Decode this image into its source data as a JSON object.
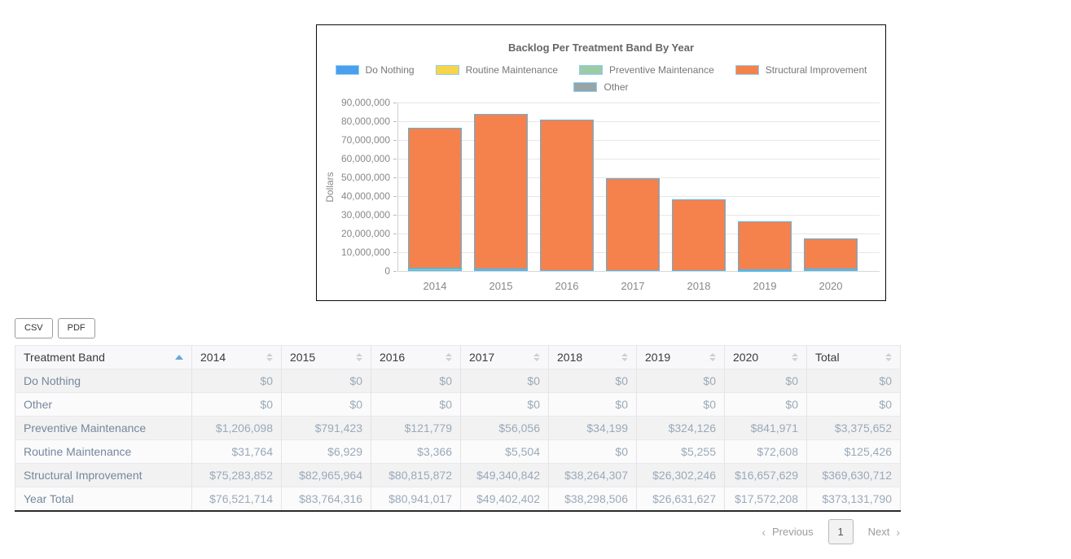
{
  "chart": {
    "title": "Backlog Per Treatment Band By Year",
    "ylabel": "Dollars",
    "bar_border_color": "#57b6e6",
    "legend_swatch_border": "#8ecdf0"
  },
  "chart_data": {
    "type": "bar",
    "stacked": true,
    "categories": [
      "2014",
      "2015",
      "2016",
      "2017",
      "2018",
      "2019",
      "2020"
    ],
    "series": [
      {
        "name": "Do Nothing",
        "color": "#4aa0ed",
        "values": [
          0,
          0,
          0,
          0,
          0,
          0,
          0
        ]
      },
      {
        "name": "Routine Maintenance",
        "color": "#f7d54a",
        "values": [
          31764,
          6929,
          3366,
          5504,
          0,
          5255,
          72608
        ]
      },
      {
        "name": "Preventive Maintenance",
        "color": "#9ccba8",
        "values": [
          1206098,
          791423,
          121779,
          56056,
          34199,
          324126,
          841971
        ]
      },
      {
        "name": "Structural Improvement",
        "color": "#f5814d",
        "values": [
          75283852,
          82965964,
          80815872,
          49340842,
          38264307,
          26302246,
          16657629
        ]
      },
      {
        "name": "Other",
        "color": "#97a5a6",
        "values": [
          0,
          0,
          0,
          0,
          0,
          0,
          0
        ]
      }
    ],
    "legend_rows": [
      [
        0,
        1,
        2,
        3
      ],
      [
        4
      ]
    ],
    "legend_order_note": "legend shows Do Nothing, Routine Maintenance, Preventive Maintenance, Structural Improvement, Other",
    "title": "Backlog Per Treatment Band By Year",
    "xlabel": "",
    "ylabel": "Dollars",
    "ylim": [
      0,
      90000000
    ],
    "ytick_step": 10000000,
    "grid": true,
    "legend_position": "top"
  },
  "toolbar": {
    "csv_label": "CSV",
    "pdf_label": "PDF"
  },
  "table": {
    "columns": [
      "Treatment Band",
      "2014",
      "2015",
      "2016",
      "2017",
      "2018",
      "2019",
      "2020",
      "Total"
    ],
    "sorted_column": "Treatment Band",
    "sort_direction": "asc",
    "rows": [
      {
        "label": "Do Nothing",
        "values": [
          "$0",
          "$0",
          "$0",
          "$0",
          "$0",
          "$0",
          "$0",
          "$0"
        ]
      },
      {
        "label": "Other",
        "values": [
          "$0",
          "$0",
          "$0",
          "$0",
          "$0",
          "$0",
          "$0",
          "$0"
        ]
      },
      {
        "label": "Preventive Maintenance",
        "values": [
          "$1,206,098",
          "$791,423",
          "$121,779",
          "$56,056",
          "$34,199",
          "$324,126",
          "$841,971",
          "$3,375,652"
        ]
      },
      {
        "label": "Routine Maintenance",
        "values": [
          "$31,764",
          "$6,929",
          "$3,366",
          "$5,504",
          "$0",
          "$5,255",
          "$72,608",
          "$125,426"
        ]
      },
      {
        "label": "Structural Improvement",
        "values": [
          "$75,283,852",
          "$82,965,964",
          "$80,815,872",
          "$49,340,842",
          "$38,264,307",
          "$26,302,246",
          "$16,657,629",
          "$369,630,712"
        ]
      },
      {
        "label": "Year Total",
        "values": [
          "$76,521,714",
          "$83,764,316",
          "$80,941,017",
          "$49,402,402",
          "$38,298,506",
          "$26,631,627",
          "$17,572,208",
          "$373,131,790"
        ]
      }
    ]
  },
  "pagination": {
    "previous_label": "Previous",
    "page": "1",
    "next_label": "Next"
  }
}
